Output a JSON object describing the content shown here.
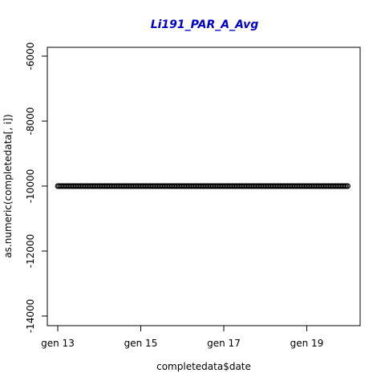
{
  "chart_data": {
    "type": "scatter",
    "title": "Li191_PAR_A_Avg",
    "xlabel": "completedata$date",
    "ylabel": "as.numeric(completedata[, i])",
    "x_tick_labels": [
      "gen 13",
      "gen 15",
      "gen 17",
      "gen 19"
    ],
    "x_tick_dates": [
      "2013-01-13",
      "2013-01-15",
      "2013-01-17",
      "2013-01-19"
    ],
    "x_range": [
      "2013-01-13",
      "2013-01-20"
    ],
    "y_ticks": [
      -6000,
      -8000,
      -10000,
      -12000,
      -14000
    ],
    "ylim": [
      -14000,
      -6000
    ],
    "series": [
      {
        "x_start": "2013-01-13",
        "x_end": "2013-01-20",
        "value": -10000,
        "marker": "open-circle"
      }
    ],
    "colors": {
      "title": "#0000cc",
      "points": "#000000",
      "axes": "#000000"
    },
    "grid": false,
    "legend": "none"
  }
}
